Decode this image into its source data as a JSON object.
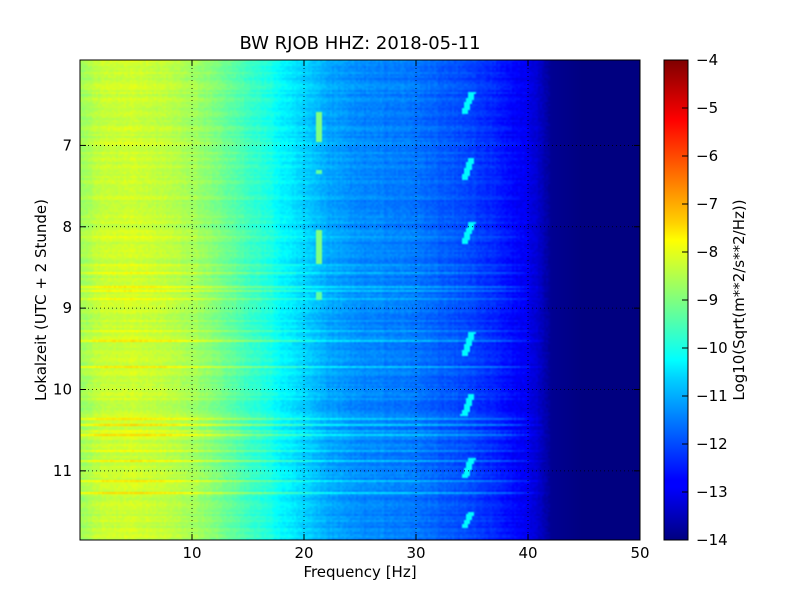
{
  "chart_data": {
    "type": "heatmap",
    "title": "BW RJOB HHZ: 2018-05-11",
    "xlabel": "Frequency [Hz]",
    "ylabel": "Lokalzeit (UTC + 2 Stunde)",
    "xlim": [
      0,
      50
    ],
    "ylim": [
      11.85,
      5.95
    ],
    "y_axis_inverted": true,
    "x_ticks": [
      10,
      20,
      30,
      40,
      50
    ],
    "x_tick_labels": [
      "10",
      "20",
      "30",
      "40",
      "50"
    ],
    "y_ticks": [
      7,
      8,
      9,
      10,
      11
    ],
    "y_tick_labels": [
      "7",
      "8",
      "9",
      "10",
      "11"
    ],
    "grid": true,
    "grid_style": "dotted",
    "colormap": "jet",
    "colorbar": {
      "label": "Log10(Sqrt(m**2/s**2/Hz))",
      "range": [
        -14,
        -4
      ],
      "ticks": [
        -4,
        -5,
        -6,
        -7,
        -8,
        -9,
        -10,
        -11,
        -12,
        -13,
        -14
      ],
      "tick_labels": [
        "−4",
        "−5",
        "−6",
        "−7",
        "−8",
        "−9",
        "−10",
        "−11",
        "−12",
        "−13",
        "−14"
      ]
    },
    "spectral_profile": {
      "frequency_hz": [
        0,
        2,
        5,
        8,
        10,
        12,
        15,
        17,
        18,
        20,
        21,
        22,
        25,
        28,
        30,
        33,
        35,
        37,
        38,
        40,
        41,
        42,
        45,
        50
      ],
      "log10_amplitude": [
        -8.7,
        -8.3,
        -8.2,
        -8.4,
        -8.6,
        -9.0,
        -9.6,
        -10.0,
        -10.3,
        -10.7,
        -10.9,
        -11.1,
        -11.4,
        -11.5,
        -11.6,
        -11.9,
        -12.1,
        -12.4,
        -12.6,
        -12.9,
        -13.3,
        -13.8,
        -14.0,
        -14.0
      ]
    },
    "features": [
      {
        "kind": "line",
        "frequency_hz": 21.3,
        "time_range": [
          6.6,
          6.95
        ],
        "log10_amplitude": -9.0
      },
      {
        "kind": "line",
        "frequency_hz": 21.3,
        "time_range": [
          7.3,
          7.35
        ],
        "log10_amplitude": -9.3
      },
      {
        "kind": "line",
        "frequency_hz": 21.3,
        "time_range": [
          8.05,
          8.45
        ],
        "log10_amplitude": -9.0
      },
      {
        "kind": "line",
        "frequency_hz": 21.3,
        "time_range": [
          8.8,
          8.9
        ],
        "log10_amplitude": -9.3
      },
      {
        "kind": "drift",
        "frequency_hz": [
          34.3,
          35.0
        ],
        "time_range": [
          6.35,
          6.62
        ],
        "log10_amplitude": -10.3
      },
      {
        "kind": "drift",
        "frequency_hz": [
          34.3,
          35.0
        ],
        "time_range": [
          7.15,
          7.42
        ],
        "log10_amplitude": -10.3
      },
      {
        "kind": "drift",
        "frequency_hz": [
          34.3,
          35.0
        ],
        "time_range": [
          7.95,
          8.22
        ],
        "log10_amplitude": -10.3
      },
      {
        "kind": "drift",
        "frequency_hz": [
          34.3,
          35.0
        ],
        "time_range": [
          9.3,
          9.6
        ],
        "log10_amplitude": -10.3
      },
      {
        "kind": "drift",
        "frequency_hz": [
          34.3,
          35.0
        ],
        "time_range": [
          10.05,
          10.32
        ],
        "log10_amplitude": -10.3
      },
      {
        "kind": "drift",
        "frequency_hz": [
          34.3,
          35.0
        ],
        "time_range": [
          10.85,
          11.1
        ],
        "log10_amplitude": -10.3
      },
      {
        "kind": "drift",
        "frequency_hz": [
          34.3,
          35.0
        ],
        "time_range": [
          11.5,
          11.7
        ],
        "log10_amplitude": -10.3
      }
    ]
  }
}
